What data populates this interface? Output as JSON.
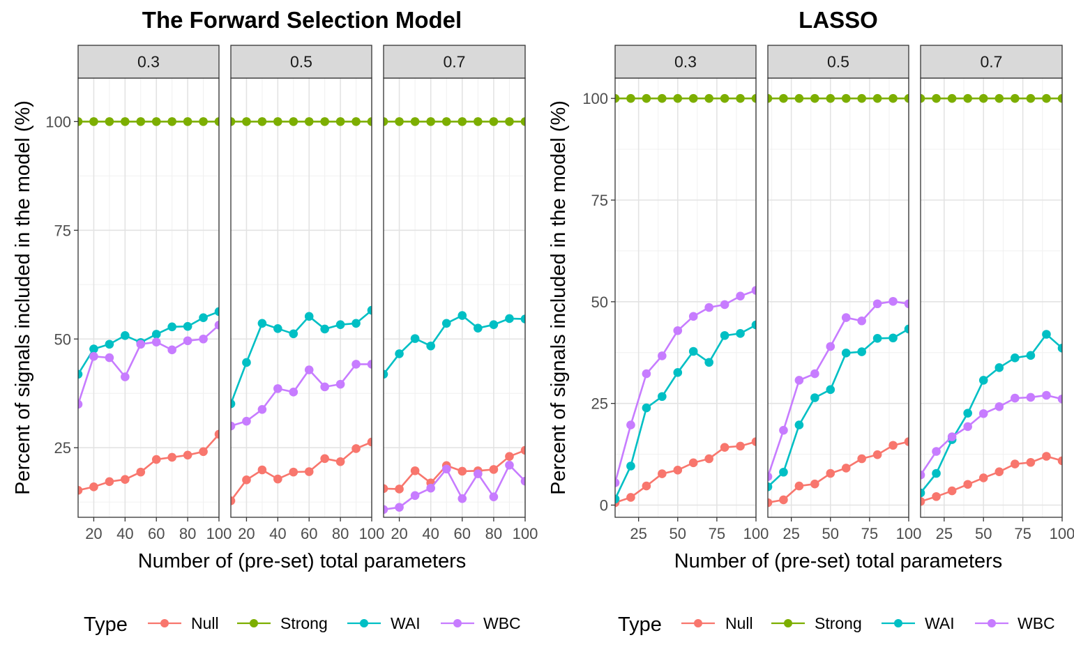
{
  "colors": {
    "Null": "#F8766D",
    "Strong": "#7CAE00",
    "WAI": "#00BFC4",
    "WBC": "#C77CFF"
  },
  "legend": {
    "title": "Type",
    "entries": [
      "Null",
      "Strong",
      "WAI",
      "WBC"
    ]
  },
  "chart_data": [
    {
      "type": "line",
      "title": "The Forward Selection Model",
      "xlabel": "Number of (pre-set) total parameters",
      "ylabel": "Percent of signals included in the model (%)",
      "xlim": [
        10,
        100
      ],
      "ylim": [
        9,
        110
      ],
      "xticks": [
        20,
        40,
        60,
        80,
        100
      ],
      "yticks": [
        25,
        50,
        75,
        100
      ],
      "x": [
        10,
        20,
        30,
        40,
        50,
        60,
        70,
        80,
        90,
        100
      ],
      "panels": [
        {
          "strip": "0.3",
          "series": [
            {
              "name": "Null",
              "values": [
                15.2,
                16.0,
                17.2,
                17.7,
                19.4,
                22.3,
                22.8,
                23.3,
                24.1,
                28.1
              ]
            },
            {
              "name": "Strong",
              "values": [
                100,
                100,
                100,
                100,
                100,
                100,
                100,
                100,
                100,
                100
              ]
            },
            {
              "name": "WAI",
              "values": [
                41.9,
                47.7,
                48.8,
                50.8,
                49.2,
                51.1,
                52.8,
                52.9,
                54.9,
                56.3
              ]
            },
            {
              "name": "WBC",
              "values": [
                35.0,
                46.0,
                45.7,
                41.3,
                48.8,
                49.3,
                47.5,
                49.6,
                50.0,
                53.2
              ]
            }
          ]
        },
        {
          "strip": "0.5",
          "series": [
            {
              "name": "Null",
              "values": [
                12.8,
                17.6,
                19.9,
                17.8,
                19.4,
                19.5,
                22.5,
                21.8,
                24.8,
                26.3
              ]
            },
            {
              "name": "Strong",
              "values": [
                100,
                100,
                100,
                100,
                100,
                100,
                100,
                100,
                100,
                100
              ]
            },
            {
              "name": "WAI",
              "values": [
                35.1,
                44.6,
                53.6,
                52.4,
                51.2,
                55.2,
                52.3,
                53.3,
                53.6,
                56.6
              ]
            },
            {
              "name": "WBC",
              "values": [
                30.0,
                31.1,
                33.8,
                38.6,
                37.8,
                42.9,
                39.0,
                39.6,
                44.2,
                44.2
              ]
            }
          ]
        },
        {
          "strip": "0.7",
          "series": [
            {
              "name": "Null",
              "values": [
                15.6,
                15.5,
                19.7,
                16.9,
                20.9,
                19.6,
                19.7,
                20.0,
                23.0,
                24.4
              ]
            },
            {
              "name": "Strong",
              "values": [
                100,
                100,
                100,
                100,
                100,
                100,
                100,
                100,
                100,
                100
              ]
            },
            {
              "name": "WAI",
              "values": [
                41.9,
                46.6,
                50.1,
                48.4,
                53.6,
                55.4,
                52.5,
                53.3,
                54.7,
                54.6
              ]
            },
            {
              "name": "WBC",
              "values": [
                10.8,
                11.3,
                14.0,
                15.7,
                20.1,
                13.3,
                19.0,
                13.7,
                21.0,
                17.3
              ]
            }
          ]
        }
      ]
    },
    {
      "type": "line",
      "title": "LASSO",
      "xlabel": "Number of (pre-set) total parameters",
      "ylabel": "Percent of signals included in the model (%)",
      "xlim": [
        10,
        100
      ],
      "ylim": [
        -3,
        105
      ],
      "xticks": [
        25,
        50,
        75,
        100
      ],
      "yticks": [
        0,
        25,
        50,
        75,
        100
      ],
      "x": [
        10,
        20,
        30,
        40,
        50,
        60,
        70,
        80,
        90,
        100
      ],
      "panels": [
        {
          "strip": "0.3",
          "series": [
            {
              "name": "Null",
              "values": [
                0.6,
                1.9,
                4.7,
                7.7,
                8.6,
                10.4,
                11.4,
                14.2,
                14.5,
                15.6
              ]
            },
            {
              "name": "Strong",
              "values": [
                100,
                100,
                100,
                100,
                100,
                100,
                100,
                100,
                100,
                100
              ]
            },
            {
              "name": "WAI",
              "values": [
                1.5,
                9.6,
                23.9,
                26.7,
                32.6,
                37.8,
                35.1,
                41.7,
                42.2,
                44.3
              ]
            },
            {
              "name": "WBC",
              "values": [
                5.5,
                19.7,
                32.3,
                36.7,
                42.9,
                46.4,
                48.6,
                49.3,
                51.4,
                52.8
              ]
            }
          ]
        },
        {
          "strip": "0.5",
          "series": [
            {
              "name": "Null",
              "values": [
                0.6,
                1.3,
                4.7,
                5.2,
                7.8,
                9.1,
                11.4,
                12.4,
                14.7,
                15.6
              ]
            },
            {
              "name": "Strong",
              "values": [
                100,
                100,
                100,
                100,
                100,
                100,
                100,
                100,
                100,
                100
              ]
            },
            {
              "name": "WAI",
              "values": [
                4.5,
                8.1,
                19.7,
                26.4,
                28.4,
                37.4,
                37.7,
                41.0,
                41.1,
                43.3
              ]
            },
            {
              "name": "WBC",
              "values": [
                7.0,
                18.4,
                30.7,
                32.3,
                39.0,
                46.1,
                45.3,
                49.5,
                50.1,
                49.5
              ]
            }
          ]
        },
        {
          "strip": "0.7",
          "series": [
            {
              "name": "Null",
              "values": [
                0.9,
                2.1,
                3.5,
                5.1,
                6.7,
                8.2,
                10.1,
                10.5,
                12.0,
                10.9
              ]
            },
            {
              "name": "Strong",
              "values": [
                100,
                100,
                100,
                100,
                100,
                100,
                100,
                100,
                100,
                100
              ]
            },
            {
              "name": "WAI",
              "values": [
                3.0,
                7.8,
                16.1,
                22.6,
                30.7,
                33.8,
                36.2,
                36.8,
                42.0,
                38.6
              ]
            },
            {
              "name": "WBC",
              "values": [
                7.4,
                13.2,
                16.8,
                19.3,
                22.5,
                24.2,
                26.3,
                26.5,
                27.0,
                26.1
              ]
            }
          ]
        }
      ]
    }
  ]
}
